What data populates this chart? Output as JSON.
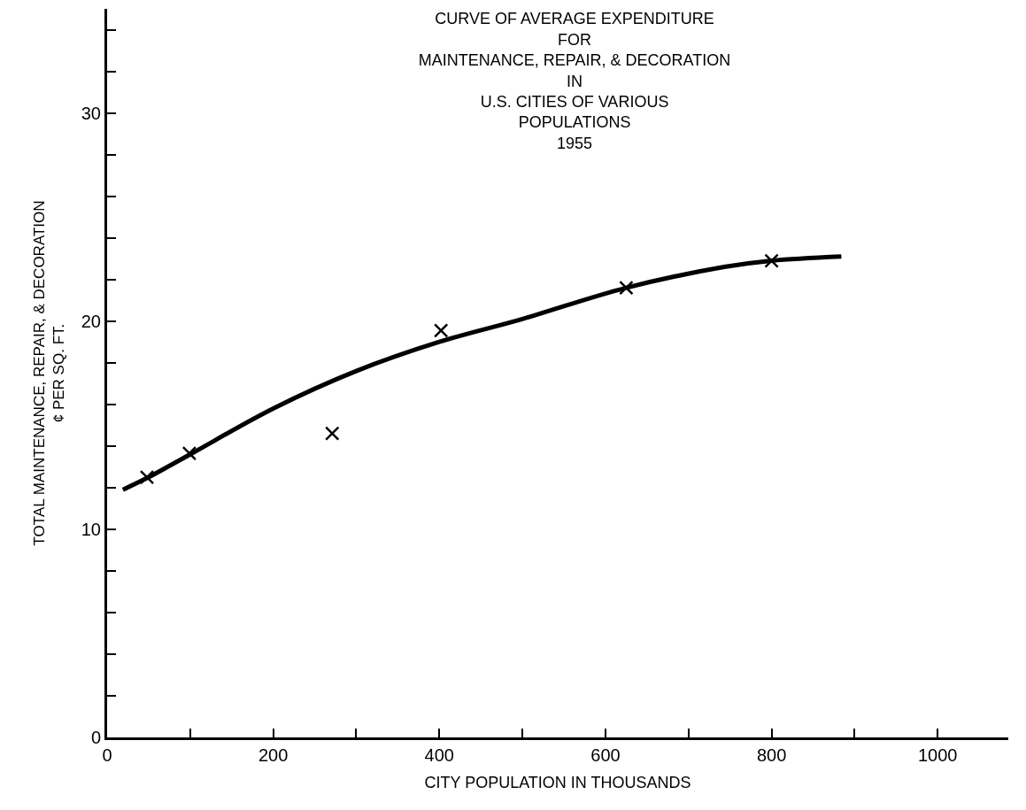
{
  "chart_data": {
    "type": "scatter",
    "title": "CURVE OF AVERAGE EXPENDITURE\nFOR\nMAINTENANCE, REPAIR, & DECORATION\nIN\nU.S. CITIES OF VARIOUS\nPOPULATIONS\n1955",
    "xlabel": "CITY POPULATION IN THOUSANDS",
    "ylabel": "TOTAL MAINTENANCE, REPAIR, & DECORATION\n¢ PER SQ. FT.",
    "series": [
      {
        "marker": "cross",
        "color": "#000000",
        "x": [
          48,
          99,
          271,
          402,
          625,
          800
        ],
        "values": [
          12.5,
          13.65,
          14.6,
          19.55,
          21.6,
          22.9
        ]
      },
      {
        "type": "line",
        "marker": "none",
        "line_style": "solid",
        "color": "#000000",
        "x": [
          19,
          50,
          100,
          200,
          300,
          400,
          500,
          625,
          743,
          800,
          884
        ],
        "values": [
          11.9,
          12.5,
          13.6,
          15.8,
          17.6,
          19.0,
          20.1,
          21.6,
          22.6,
          22.9,
          23.1
        ]
      }
    ],
    "xlim": [
      0,
      1085
    ],
    "xticks": [
      0,
      {
        "value": 100,
        "label": null
      },
      200,
      {
        "value": 300,
        "label": null
      },
      400,
      {
        "value": 500,
        "label": null
      },
      600,
      {
        "value": 700,
        "label": null
      },
      800,
      {
        "value": 900,
        "label": null
      },
      1000
    ],
    "ylim": [
      0,
      35
    ],
    "yticks": [
      0,
      {
        "value": 2,
        "label": null
      },
      {
        "value": 4,
        "label": null
      },
      {
        "value": 6,
        "label": null
      },
      {
        "value": 8,
        "label": null
      },
      10,
      {
        "value": 12,
        "label": null
      },
      {
        "value": 14,
        "label": null
      },
      {
        "value": 16,
        "label": null
      },
      {
        "value": 18,
        "label": null
      },
      20,
      {
        "value": 22,
        "label": null
      },
      {
        "value": 24,
        "label": null
      },
      {
        "value": 26,
        "label": null
      },
      {
        "value": 28,
        "label": null
      },
      30,
      {
        "value": 32,
        "label": null
      },
      {
        "value": 34,
        "label": null
      }
    ]
  }
}
